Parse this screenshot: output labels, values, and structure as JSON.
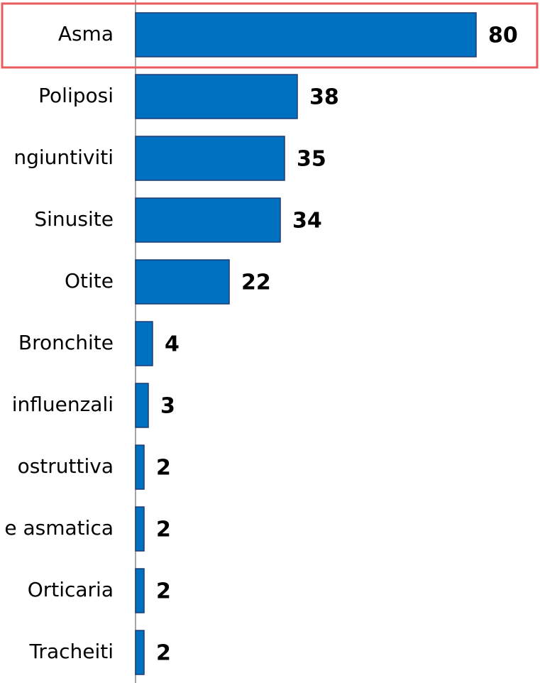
{
  "chart_data": {
    "type": "barh",
    "categories": [
      "Asma",
      "Poliposi",
      "ngiuntiviti",
      "Sinusite",
      "Otite",
      "Bronchite",
      "influenzali",
      "ostruttiva",
      "e asmatica",
      "Orticaria",
      "Tracheiti"
    ],
    "values": [
      80,
      38,
      35,
      34,
      22,
      4,
      3,
      2,
      2,
      2,
      2
    ],
    "color": "#0070c0",
    "xlim": [
      0,
      95
    ]
  }
}
